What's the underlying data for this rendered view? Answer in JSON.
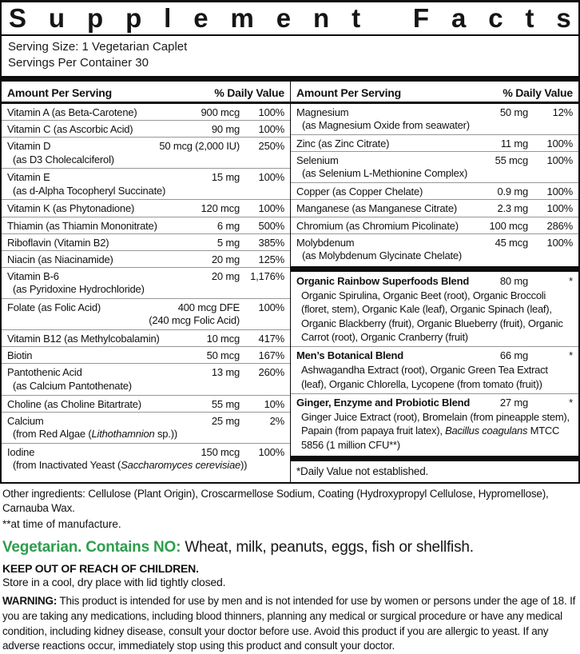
{
  "title": "Supplement Facts",
  "serving": {
    "size": "Serving Size: 1 Vegetarian Caplet",
    "per_container": "Servings Per Container 30"
  },
  "columns_header": {
    "amount": "Amount Per Serving",
    "dv": "% Daily Value"
  },
  "colors": {
    "accent_green": "#2e9e4c",
    "rule_gray": "#979797",
    "ink": "#0d0d0d"
  },
  "left_rows": [
    {
      "name": "Vitamin A (as Beta-Carotene)",
      "amount": "900 mcg",
      "dv": "100%"
    },
    {
      "name": "Vitamin C (as Ascorbic Acid)",
      "amount": "90 mg",
      "dv": "100%"
    },
    {
      "name": "Vitamin D",
      "amount": "50 mcg (2,000 IU)",
      "dv": "250%",
      "sub": [
        {
          "t": "(as D3 Cholecalciferol)"
        }
      ]
    },
    {
      "name": "Vitamin E",
      "amount": "15 mg",
      "dv": "100%",
      "sub": [
        {
          "t": "(as d-Alpha Tocopheryl Succinate)"
        }
      ]
    },
    {
      "name": "Vitamin K (as Phytonadione)",
      "amount": "120 mcg",
      "dv": "100%"
    },
    {
      "name": "Thiamin (as Thiamin Mononitrate)",
      "amount": "6 mg",
      "dv": "500%"
    },
    {
      "name": "Riboflavin (Vitamin B2)",
      "amount": "5 mg",
      "dv": "385%"
    },
    {
      "name": "Niacin (as Niacinamide)",
      "amount": "20 mg",
      "dv": "125%"
    },
    {
      "name": "Vitamin B-6",
      "amount": "20 mg",
      "dv": "1,176%",
      "sub": [
        {
          "t": "(as Pyridoxine Hydrochloride)"
        }
      ]
    },
    {
      "name": "Folate (as Folic Acid)",
      "amount": "400 mcg DFE",
      "dv": "100%",
      "sub_amount": "(240 mcg Folic Acid)"
    },
    {
      "name": "Vitamin B12 (as Methylcobalamin)",
      "amount": "10 mcg",
      "dv": "417%"
    },
    {
      "name": "Biotin",
      "amount": "50 mcg",
      "dv": "167%"
    },
    {
      "name": "Pantothenic Acid",
      "amount": "13 mg",
      "dv": "260%",
      "sub": [
        {
          "t": "(as Calcium Pantothenate)"
        }
      ]
    },
    {
      "name": "Choline (as Choline Bitartrate)",
      "amount": "55 mg",
      "dv": "10%"
    },
    {
      "name": "Calcium",
      "amount": "25 mg",
      "dv": "2%",
      "sub": [
        {
          "t": "(from Red Algae ("
        },
        {
          "t": "Lithothamnion",
          "i": true
        },
        {
          "t": " sp.))"
        }
      ]
    },
    {
      "name": "Iodine",
      "amount": "150 mcg",
      "dv": "100%",
      "sub": [
        {
          "t": "(from Inactivated Yeast ("
        },
        {
          "t": "Saccharomyces cerevisiae",
          "i": true
        },
        {
          "t": "))"
        }
      ]
    }
  ],
  "right_rows": [
    {
      "name": "Magnesium",
      "amount": "50 mg",
      "dv": "12%",
      "sub": [
        {
          "t": "(as Magnesium Oxide from seawater)"
        }
      ]
    },
    {
      "name": "Zinc (as Zinc Citrate)",
      "amount": "11 mg",
      "dv": "100%"
    },
    {
      "name": "Selenium",
      "amount": "55 mcg",
      "dv": "100%",
      "sub": [
        {
          "t": "(as Selenium L-Methionine Complex)"
        }
      ]
    },
    {
      "name": "Copper (as Copper Chelate)",
      "amount": "0.9 mg",
      "dv": "100%"
    },
    {
      "name": "Manganese (as Manganese Citrate)",
      "amount": "2.3 mg",
      "dv": "100%"
    },
    {
      "name": "Chromium (as Chromium Picolinate)",
      "amount": "100 mcg",
      "dv": "286%"
    },
    {
      "name": "Molybdenum",
      "amount": "45 mcg",
      "dv": "100%",
      "sub": [
        {
          "t": "(as Molybdenum Glycinate Chelate)"
        }
      ]
    }
  ],
  "blends": [
    {
      "name": "Organic Rainbow Superfoods Blend",
      "amount": "80 mg",
      "dv": "*",
      "desc": [
        {
          "t": "Organic Spirulina, Organic Beet (root), Organic Broccoli (floret, stem), Organic Kale (leaf), Organic Spinach (leaf), Organic Blackberry (fruit), Organic Blueberry (fruit), Organic Carrot (root), Organic Cranberry (fruit)"
        }
      ]
    },
    {
      "name": "Men’s Botanical Blend",
      "amount": "66 mg",
      "dv": "*",
      "desc": [
        {
          "t": "Ashwagandha Extract (root), Organic Green Tea Extract (leaf), Organic Chlorella, Lycopene (from tomato (fruit))"
        }
      ]
    },
    {
      "name": "Ginger, Enzyme and Probiotic Blend",
      "amount": "27 mg",
      "dv": "*",
      "desc": [
        {
          "t": "Ginger Juice Extract (root), Bromelain (from pineapple stem), Papain (from papaya fruit latex), "
        },
        {
          "t": "Bacillus coagulans",
          "i": true
        },
        {
          "t": " MTCC 5856 (1 million CFU**)"
        }
      ]
    }
  ],
  "footnote": "*Daily Value not established.",
  "other_ingredients": "Other ingredients: Cellulose (Plant Origin), Croscarmellose Sodium, Coating (Hydroxypropyl Cellulose, Hypromellose), Carnauba Wax.",
  "manufacture_note": "**at time of manufacture.",
  "vegetarian": {
    "lead": "Vegetarian. Contains NO:",
    "rest": "Wheat, milk, peanuts, eggs, fish or shellfish."
  },
  "keep_out": "KEEP OUT OF REACH OF CHILDREN.",
  "storage": "Store in a cool, dry place with lid tightly closed.",
  "warning": {
    "lead": "WARNING:",
    "rest": " This product is intended for use by men and is not intended for use by women or persons under the age of 18. If you are taking any medications, including blood thinners, planning any medical or surgical procedure or have any medical condition, including kidney disease, consult your doctor before use. Avoid this product if you are allergic to yeast. If any adverse reactions occur, immediately stop using this product and consult your doctor."
  }
}
